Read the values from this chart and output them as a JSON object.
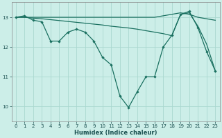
{
  "xlabel": "Humidex (Indice chaleur)",
  "background_color": "#cceee8",
  "grid_color": "#aad8d0",
  "line_color": "#1a7060",
  "xlim": [
    -0.5,
    23.5
  ],
  "ylim": [
    9.5,
    13.5
  ],
  "yticks": [
    10,
    11,
    12,
    13
  ],
  "xticks": [
    0,
    1,
    2,
    3,
    4,
    5,
    6,
    7,
    8,
    9,
    10,
    11,
    12,
    13,
    14,
    15,
    16,
    17,
    18,
    19,
    20,
    21,
    22,
    23
  ],
  "line_small": {
    "x": [
      0,
      1,
      2,
      3,
      4,
      5,
      6,
      7,
      8,
      9,
      10,
      11,
      12,
      13,
      14,
      15,
      16,
      17,
      18,
      19,
      20,
      21,
      22,
      23
    ],
    "y": [
      13.0,
      13.05,
      12.9,
      12.85,
      12.2,
      12.2,
      12.5,
      12.6,
      12.5,
      12.2,
      11.65,
      11.4,
      10.35,
      9.97,
      10.5,
      11.0,
      11.0,
      12.0,
      12.4,
      13.1,
      13.2,
      12.65,
      11.85,
      11.2
    ]
  },
  "line_flat": {
    "x": [
      0,
      1,
      2,
      3,
      4,
      5,
      6,
      7,
      8,
      9,
      10,
      11,
      12,
      13,
      14,
      15,
      16,
      17,
      18,
      19,
      20,
      21,
      22,
      23
    ],
    "y": [
      13.0,
      13.0,
      12.97,
      12.95,
      12.92,
      12.89,
      12.86,
      12.83,
      12.8,
      12.77,
      12.74,
      12.7,
      12.67,
      12.64,
      12.6,
      12.55,
      12.5,
      12.45,
      12.38,
      13.1,
      13.15,
      12.7,
      12.1,
      11.2
    ]
  },
  "line_peak": {
    "x": [
      0,
      1,
      2,
      3,
      4,
      5,
      6,
      7,
      8,
      9,
      10,
      11,
      12,
      13,
      14,
      15,
      16,
      17,
      18,
      19,
      20,
      21,
      22,
      23
    ],
    "y": [
      13.0,
      13.0,
      13.0,
      13.0,
      13.0,
      13.0,
      13.0,
      13.0,
      13.0,
      13.0,
      13.0,
      13.0,
      13.0,
      13.0,
      13.0,
      13.0,
      13.0,
      13.05,
      13.1,
      13.15,
      13.1,
      13.0,
      12.95,
      12.9
    ]
  }
}
